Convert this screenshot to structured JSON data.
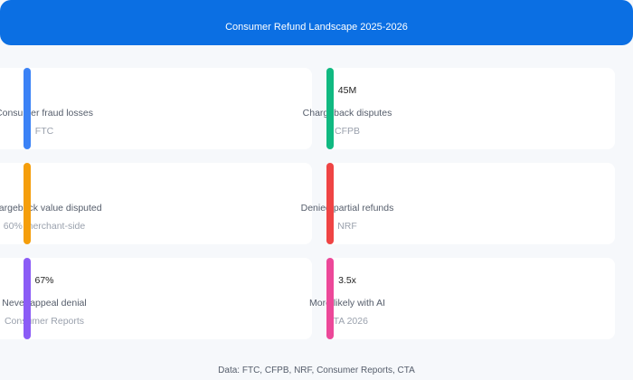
{
  "header": {
    "title": "Consumer Refund Landscape 2025-2026"
  },
  "cards": [
    {
      "label": "Consumer fraud losses",
      "source": "FTC",
      "color": "#3b82f6"
    },
    {
      "value": "45M",
      "label": "Chargeback disputes",
      "source": "CFPB",
      "color": "#10b981"
    },
    {
      "label": "Chargeback value disputed",
      "source": "60% merchant-side",
      "color": "#f59e0b"
    },
    {
      "label": "Denied partial refunds",
      "source": "NRF",
      "color": "#ef4444"
    },
    {
      "value": "67%",
      "label": "Never appeal denial",
      "source": "Consumer Reports",
      "color": "#8b5cf6"
    },
    {
      "value": "3.5x",
      "label": "More likely with AI",
      "source": "CTA 2026",
      "color": "#ec4899"
    }
  ],
  "footer": {
    "text": "Data: FTC, CFPB, NRF, Consumer Reports, CTA"
  }
}
